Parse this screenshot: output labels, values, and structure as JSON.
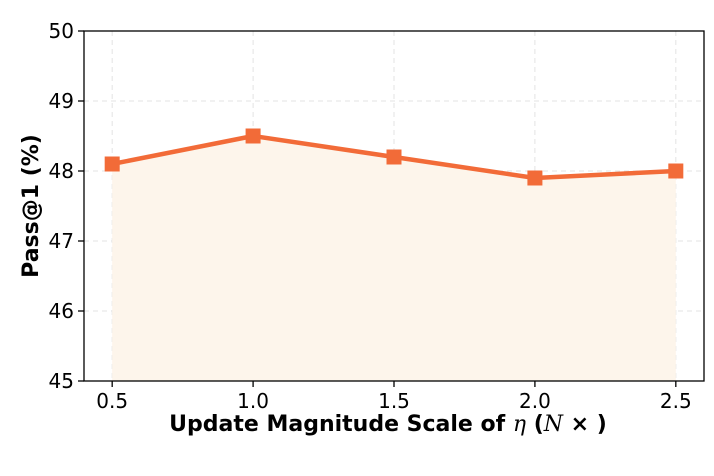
{
  "chart_data": {
    "type": "line",
    "title": "",
    "xlabel_prefix": "Update Magnitude Scale of ",
    "xlabel_eta": "η",
    "xlabel_paren_open": " (",
    "xlabel_n": "N",
    "xlabel_suffix": " × )",
    "ylabel": "Pass@1 (%)",
    "x": [
      0.5,
      1.0,
      1.5,
      2.0,
      2.5
    ],
    "values": [
      48.1,
      48.5,
      48.2,
      47.9,
      48.0
    ],
    "xlim": [
      0.4,
      2.6
    ],
    "ylim": [
      45,
      50
    ],
    "x_ticks": [
      "0.5",
      "1.0",
      "1.5",
      "2.0",
      "2.5"
    ],
    "y_ticks": [
      "45",
      "46",
      "47",
      "48",
      "49",
      "50"
    ],
    "grid": true,
    "line_color": "#F26B38",
    "fill_color": "#FDF5EB",
    "marker": "square"
  }
}
